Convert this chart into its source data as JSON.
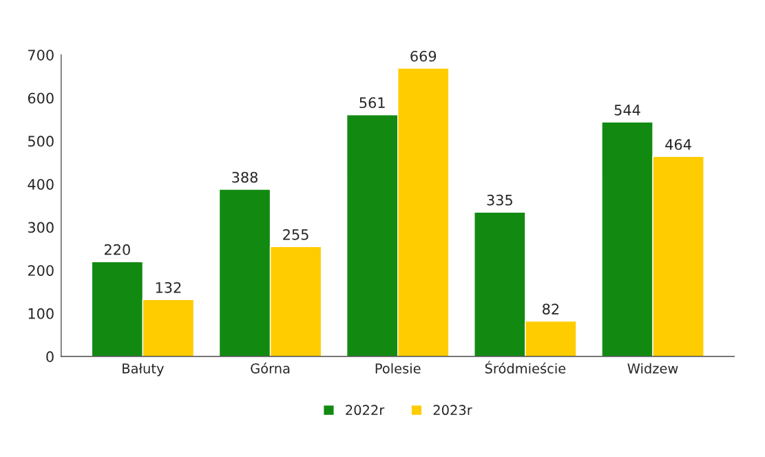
{
  "chart_data": {
    "type": "bar",
    "categories": [
      "Bałuty",
      "Górna",
      "Polesie",
      "Śródmieście",
      "Widzew"
    ],
    "series": [
      {
        "name": "2022r",
        "color": "#128a12",
        "values": [
          220,
          388,
          561,
          335,
          544
        ]
      },
      {
        "name": "2023r",
        "color": "#ffcc00",
        "values": [
          132,
          255,
          669,
          82,
          464
        ]
      }
    ],
    "ylim": [
      0,
      700
    ],
    "yticks": [
      0,
      100,
      200,
      300,
      400,
      500,
      600,
      700
    ],
    "data_labels": true,
    "legend": "bottom",
    "grid": false
  }
}
